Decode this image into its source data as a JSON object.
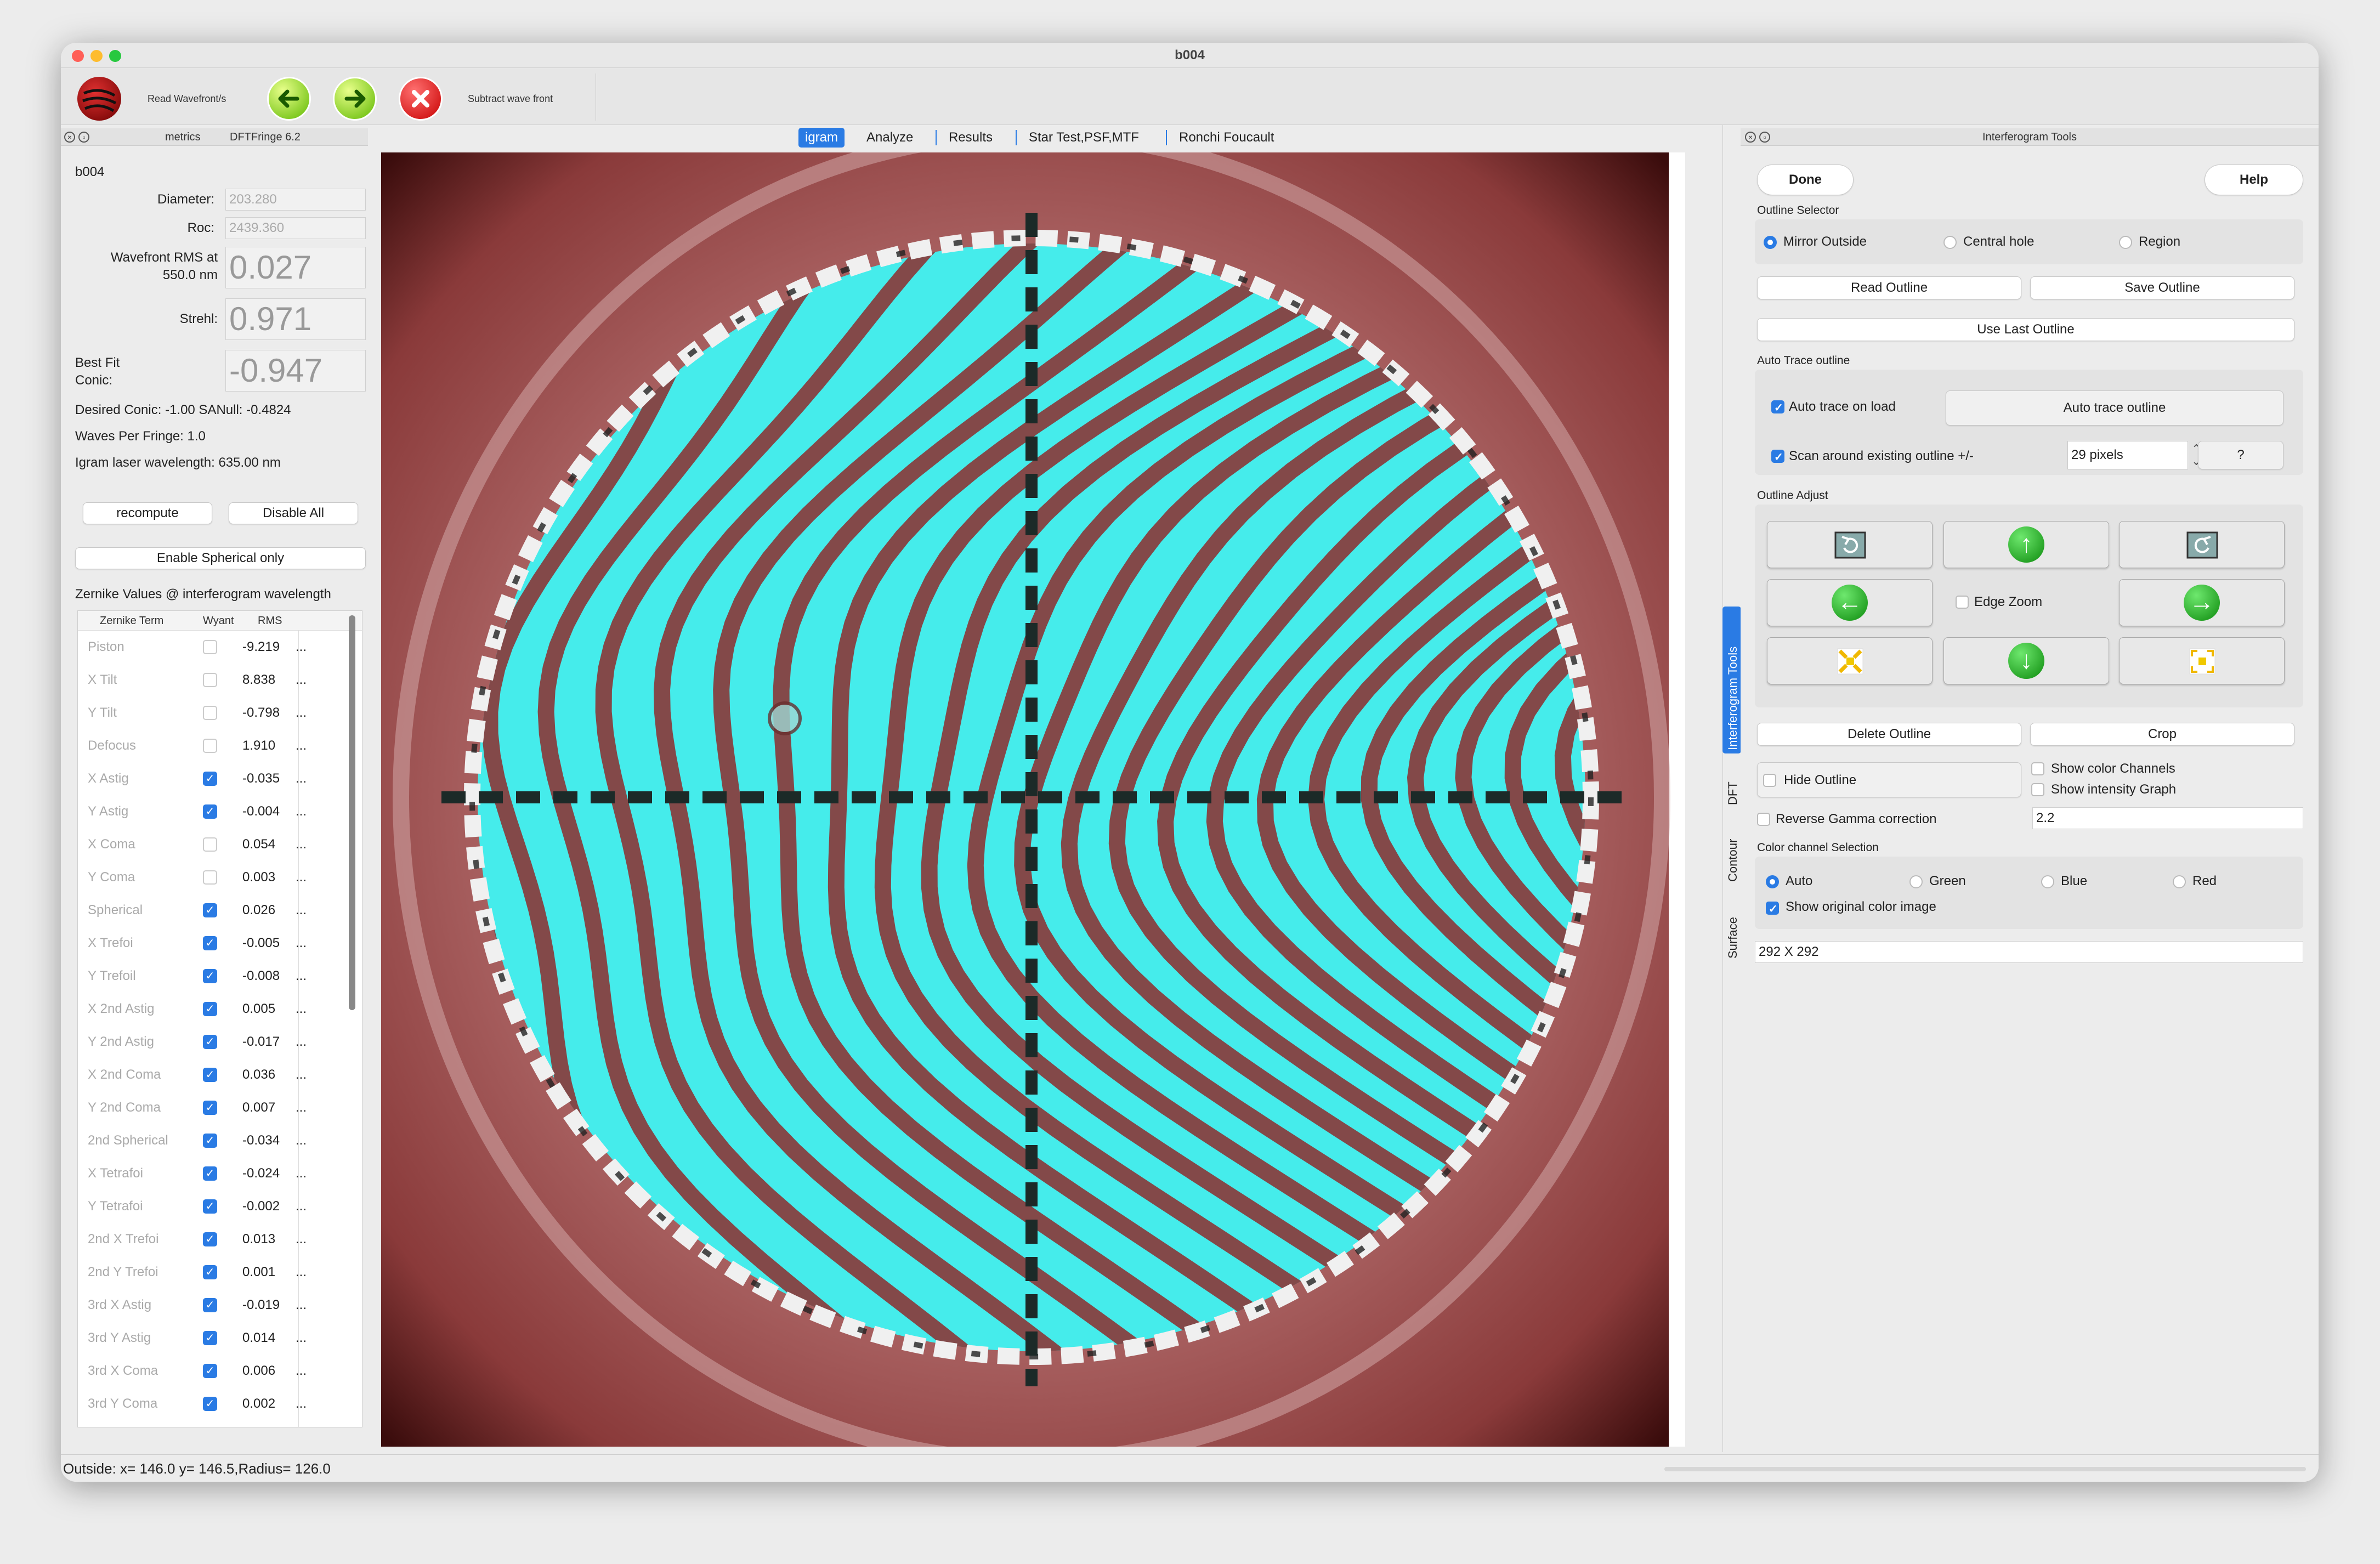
{
  "window": {
    "title": "b004"
  },
  "toolbar": {
    "read_label": "Read Wavefront/s",
    "subtract_label": "Subtract wave front"
  },
  "left_panel": {
    "header_metrics": "metrics",
    "header_app": "DFTFringe 6.2",
    "name": "b004",
    "diameter_label": "Diameter:",
    "diameter_value": "203.280",
    "roc_label": "Roc:",
    "roc_value": "2439.360",
    "wavefront_rms_label_1": "Wavefront RMS at",
    "wavefront_rms_label_2": "550.0 nm",
    "wavefront_rms_value": "0.027",
    "strehl_label": "Strehl:",
    "strehl_value": "0.971",
    "best_fit_label_1": "Best Fit",
    "best_fit_label_2": "Conic:",
    "best_fit_value": "-0.947",
    "desired_conic": "Desired Conic:  -1.00 SANull: -0.4824",
    "waves_per_fringe": "Waves Per Fringe: 1.0",
    "igram_wavelength": "Igram laser wavelength: 635.00 nm",
    "recompute": "recompute",
    "disable_all": "Disable All",
    "enable_spherical": "Enable Spherical only",
    "zernike_title": "Zernike Values @ interferogram wavelength",
    "table_headers": {
      "term": "Zernike Term",
      "wyant": "Wyant",
      "rms": "RMS"
    },
    "zernike_rows": [
      {
        "name": "Piston",
        "checked": false,
        "value": "-9.219"
      },
      {
        "name": "X Tilt",
        "checked": false,
        "value": "8.838"
      },
      {
        "name": "Y Tilt",
        "checked": false,
        "value": "-0.798"
      },
      {
        "name": "Defocus",
        "checked": false,
        "value": "1.910"
      },
      {
        "name": "X Astig",
        "checked": true,
        "value": "-0.035"
      },
      {
        "name": "Y Astig",
        "checked": true,
        "value": "-0.004"
      },
      {
        "name": "X Coma",
        "checked": false,
        "value": "0.054"
      },
      {
        "name": "Y Coma",
        "checked": false,
        "value": "0.003"
      },
      {
        "name": "Spherical",
        "checked": true,
        "value": "0.026"
      },
      {
        "name": "X Trefoi",
        "checked": true,
        "value": "-0.005"
      },
      {
        "name": "Y Trefoil",
        "checked": true,
        "value": "-0.008"
      },
      {
        "name": "X 2nd Astig",
        "checked": true,
        "value": "0.005"
      },
      {
        "name": "Y 2nd Astig",
        "checked": true,
        "value": "-0.017"
      },
      {
        "name": "X 2nd Coma",
        "checked": true,
        "value": "0.036"
      },
      {
        "name": "Y 2nd Coma",
        "checked": true,
        "value": "0.007"
      },
      {
        "name": "2nd Spherical",
        "checked": true,
        "value": "-0.034"
      },
      {
        "name": "X Tetrafoi",
        "checked": true,
        "value": "-0.024"
      },
      {
        "name": "Y Tetrafoi",
        "checked": true,
        "value": "-0.002"
      },
      {
        "name": "2nd X Trefoi",
        "checked": true,
        "value": "0.013"
      },
      {
        "name": "2nd Y Trefoi",
        "checked": true,
        "value": "0.001"
      },
      {
        "name": "3rd X Astig",
        "checked": true,
        "value": "-0.019"
      },
      {
        "name": "3rd Y Astig",
        "checked": true,
        "value": "0.014"
      },
      {
        "name": "3rd X Coma",
        "checked": true,
        "value": "0.006"
      },
      {
        "name": "3rd Y Coma",
        "checked": true,
        "value": "0.002"
      }
    ]
  },
  "tabs": [
    "igram",
    "Analyze",
    "Results",
    "Star Test,PSF,MTF",
    "Ronchi  Foucault"
  ],
  "right_panel": {
    "title": "Interferogram Tools",
    "done": "Done",
    "help": "Help",
    "outline_selector": "Outline Selector",
    "mirror_outside": "Mirror Outside",
    "central_hole": "Central hole",
    "region": "Region",
    "read_outline": "Read Outline",
    "save_outline": "Save Outline",
    "use_last_outline": "Use Last Outline",
    "auto_trace_outline": "Auto Trace outline",
    "auto_trace_on_load": "Auto trace on load",
    "auto_trace_btn": "Auto trace outline",
    "scan_around": "Scan around existing outline +/-",
    "scan_value": "29 pixels",
    "question": "?",
    "outline_adjust": "Outline Adjust",
    "edge_zoom": "Edge Zoom",
    "delete_outline": "Delete Outline",
    "crop": "Crop",
    "hide_outline": "Hide Outline",
    "show_color_channels": "Show color Channels",
    "show_intensity_graph": "Show intensity Graph",
    "reverse_gamma": "Reverse Gamma correction",
    "gamma_value": "2.2",
    "color_channel_selection": "Color channel Selection",
    "auto": "Auto",
    "green": "Green",
    "blue": "Blue",
    "red": "Red",
    "show_original": "Show original color image",
    "size": "292 X 292"
  },
  "side_tabs": [
    "Interferogram Tools",
    "DFT",
    "Contour",
    "Surface"
  ],
  "status": "Outside: x= 146.0 y= 146.5,Radius=  126.0",
  "colors": {
    "accent": "#2a7be4",
    "fringe_cyan": "#3ff0ee",
    "background_red": "#a85c5c"
  }
}
